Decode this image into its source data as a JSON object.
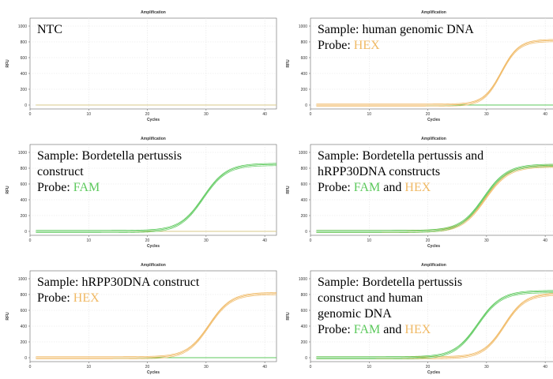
{
  "colors": {
    "fam": "#5cc95c",
    "hex": "#f0b964",
    "baseline": "#d9c98a",
    "grid": "#e4e4e4",
    "axis": "#666666",
    "background": "#ffffff"
  },
  "chart_data": [
    {
      "type": "line",
      "title": "Amplification",
      "xlabel": "Cycles",
      "ylabel": "RFU",
      "xlim": [
        0,
        42
      ],
      "ylim": [
        -50,
        1100
      ],
      "xticks": [
        0,
        10,
        20,
        30,
        40
      ],
      "yticks": [
        0,
        200,
        400,
        600,
        800,
        1000
      ],
      "grid": true,
      "annotation": [
        {
          "text": "NTC",
          "color": "#000000"
        }
      ],
      "series": [
        {
          "probe": "FAM",
          "color": "#5cc95c",
          "sigmoid": {
            "plateau": 0,
            "midpoint": 0,
            "slope": 1
          }
        },
        {
          "probe": "HEX",
          "color": "#f0b964",
          "sigmoid": {
            "plateau": 0,
            "midpoint": 0,
            "slope": 1
          }
        }
      ]
    },
    {
      "type": "line",
      "title": "Amplification",
      "xlabel": "Cycles",
      "ylabel": "RFU",
      "xlim": [
        0,
        42
      ],
      "ylim": [
        -50,
        1100
      ],
      "xticks": [
        0,
        10,
        20,
        30,
        40
      ],
      "yticks": [
        0,
        200,
        400,
        600,
        800,
        1000
      ],
      "grid": true,
      "annotation": [
        {
          "text": "Sample: human genomic DNA",
          "color": "#000000"
        },
        {
          "text": "Probe: ",
          "color": "#000000",
          "inline": true
        },
        {
          "text": "HEX",
          "color": "#f0b964",
          "inline": true
        }
      ],
      "series": [
        {
          "probe": "FAM",
          "color": "#5cc95c",
          "sigmoid": {
            "plateau": 0,
            "midpoint": 0,
            "slope": 1
          }
        },
        {
          "probe": "HEX",
          "color": "#f0b964",
          "sigmoid": {
            "plateau": 820,
            "midpoint": 32.5,
            "slope": 1.5
          }
        }
      ]
    },
    {
      "type": "line",
      "title": "Amplification",
      "xlabel": "Cycles",
      "ylabel": "RFU",
      "xlim": [
        0,
        42
      ],
      "ylim": [
        -50,
        1100
      ],
      "xticks": [
        0,
        10,
        20,
        30,
        40
      ],
      "yticks": [
        0,
        200,
        400,
        600,
        800,
        1000
      ],
      "grid": true,
      "annotation": [
        {
          "text": "Sample: Bordetella pertussis",
          "color": "#000000"
        },
        {
          "text": "construct",
          "color": "#000000"
        },
        {
          "text": "Probe: ",
          "color": "#000000",
          "inline": true
        },
        {
          "text": "FAM",
          "color": "#5cc95c",
          "inline": true
        }
      ],
      "series": [
        {
          "probe": "FAM",
          "color": "#5cc95c",
          "sigmoid": {
            "plateau": 850,
            "midpoint": 29.5,
            "slope": 2.0
          }
        },
        {
          "probe": "HEX",
          "color": "#f0b964",
          "sigmoid": {
            "plateau": 0,
            "midpoint": 0,
            "slope": 1
          }
        }
      ]
    },
    {
      "type": "line",
      "title": "Amplification",
      "xlabel": "Cycles",
      "ylabel": "RFU",
      "xlim": [
        0,
        42
      ],
      "ylim": [
        -50,
        1100
      ],
      "xticks": [
        0,
        10,
        20,
        30,
        40
      ],
      "yticks": [
        0,
        200,
        400,
        600,
        800,
        1000
      ],
      "grid": true,
      "annotation": [
        {
          "text": "Sample: Bordetella pertussis and",
          "color": "#000000"
        },
        {
          "text": "hRPP30DNA constructs",
          "color": "#000000"
        },
        {
          "text": "Probe: ",
          "color": "#000000",
          "inline": true
        },
        {
          "text": "FAM",
          "color": "#5cc95c",
          "inline": true
        },
        {
          "text": " and ",
          "color": "#000000",
          "inline": true
        },
        {
          "text": "HEX",
          "color": "#f0b964",
          "inline": true
        }
      ],
      "series": [
        {
          "probe": "FAM",
          "color": "#5cc95c",
          "sigmoid": {
            "plateau": 840,
            "midpoint": 29.5,
            "slope": 2.0
          }
        },
        {
          "probe": "HEX",
          "color": "#f0b964",
          "sigmoid": {
            "plateau": 830,
            "midpoint": 29.8,
            "slope": 2.0
          }
        }
      ]
    },
    {
      "type": "line",
      "title": "Amplification",
      "xlabel": "Cycles",
      "ylabel": "RFU",
      "xlim": [
        0,
        42
      ],
      "ylim": [
        -50,
        1100
      ],
      "xticks": [
        0,
        10,
        20,
        30,
        40
      ],
      "yticks": [
        0,
        200,
        400,
        600,
        800,
        1000
      ],
      "grid": true,
      "annotation": [
        {
          "text": "Sample: hRPP30DNA construct",
          "color": "#000000"
        },
        {
          "text": "Probe: ",
          "color": "#000000",
          "inline": true
        },
        {
          "text": "HEX",
          "color": "#f0b964",
          "inline": true
        }
      ],
      "series": [
        {
          "probe": "FAM",
          "color": "#5cc95c",
          "sigmoid": {
            "plateau": 0,
            "midpoint": 0,
            "slope": 1
          }
        },
        {
          "probe": "HEX",
          "color": "#f0b964",
          "sigmoid": {
            "plateau": 815,
            "midpoint": 30.5,
            "slope": 1.9
          }
        }
      ]
    },
    {
      "type": "line",
      "title": "Amplification",
      "xlabel": "Cycles",
      "ylabel": "RFU",
      "xlim": [
        0,
        42
      ],
      "ylim": [
        -50,
        1100
      ],
      "xticks": [
        0,
        10,
        20,
        30,
        40
      ],
      "yticks": [
        0,
        200,
        400,
        600,
        800,
        1000
      ],
      "grid": true,
      "annotation": [
        {
          "text": "Sample: Bordetella pertussis",
          "color": "#000000"
        },
        {
          "text": "construct and human",
          "color": "#000000"
        },
        {
          "text": "genomic DNA",
          "color": "#000000"
        },
        {
          "text": "Probe: ",
          "color": "#000000",
          "inline": true
        },
        {
          "text": "FAM",
          "color": "#5cc95c",
          "inline": true
        },
        {
          "text": " and ",
          "color": "#000000",
          "inline": true
        },
        {
          "text": "HEX",
          "color": "#f0b964",
          "inline": true
        }
      ],
      "series": [
        {
          "probe": "FAM",
          "color": "#5cc95c",
          "sigmoid": {
            "plateau": 840,
            "midpoint": 28.5,
            "slope": 2.0
          }
        },
        {
          "probe": "HEX",
          "color": "#f0b964",
          "sigmoid": {
            "plateau": 810,
            "midpoint": 33.0,
            "slope": 1.8
          }
        }
      ]
    }
  ]
}
